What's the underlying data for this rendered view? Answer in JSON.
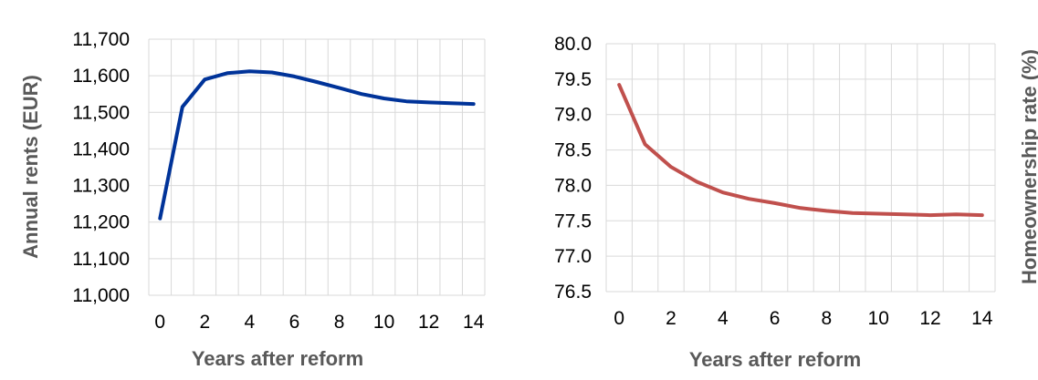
{
  "chart_data": [
    {
      "type": "line",
      "xlabel": "Years after reform",
      "ylabel": "Annual rents (EUR)",
      "x": [
        0,
        1,
        2,
        3,
        4,
        5,
        6,
        7,
        8,
        9,
        10,
        11,
        12,
        13,
        14
      ],
      "xticks": [
        0,
        2,
        4,
        6,
        8,
        10,
        12,
        14
      ],
      "xtick_labels": [
        "0",
        "2",
        "4",
        "6",
        "8",
        "10",
        "12",
        "14"
      ],
      "ylim": [
        11000,
        11700
      ],
      "yticks": [
        11000,
        11100,
        11200,
        11300,
        11400,
        11500,
        11600,
        11700
      ],
      "ytick_labels": [
        "11,000",
        "11,100",
        "11,200",
        "11,300",
        "11,400",
        "11,500",
        "11,600",
        "11,700"
      ],
      "grid": true,
      "series": [
        {
          "color": "#003399",
          "values": [
            11210,
            11515,
            11590,
            11607,
            11612,
            11609,
            11598,
            11583,
            11567,
            11550,
            11538,
            11530,
            11527,
            11525,
            11523
          ]
        }
      ]
    },
    {
      "type": "line",
      "xlabel": "Years after reform",
      "ylabel": "Homeownership rate (%)",
      "x": [
        0,
        1,
        2,
        3,
        4,
        5,
        6,
        7,
        8,
        9,
        10,
        11,
        12,
        13,
        14
      ],
      "xticks": [
        0,
        2,
        4,
        6,
        8,
        10,
        12,
        14
      ],
      "xtick_labels": [
        "0",
        "2",
        "4",
        "6",
        "8",
        "10",
        "12",
        "14"
      ],
      "ylim": [
        76.5,
        80.0
      ],
      "yticks": [
        76.5,
        77.0,
        77.5,
        78.0,
        78.5,
        79.0,
        79.5,
        80.0
      ],
      "ytick_labels": [
        "76.5",
        "77.0",
        "77.5",
        "78.0",
        "78.5",
        "79.0",
        "79.5",
        "80.0"
      ],
      "grid": true,
      "series": [
        {
          "color": "#c0504d",
          "values": [
            79.42,
            78.58,
            78.26,
            78.05,
            77.9,
            77.81,
            77.75,
            77.68,
            77.64,
            77.61,
            77.6,
            77.59,
            77.58,
            77.59,
            77.58
          ]
        }
      ]
    }
  ]
}
